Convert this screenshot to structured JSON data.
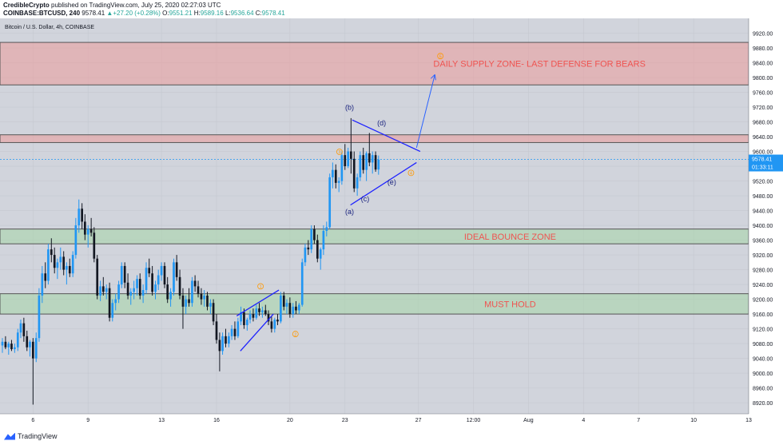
{
  "header": {
    "author": "CredibleCrypto",
    "published": "published on TradingView.com, July 25, 2020 02:27:03 UTC",
    "symbol": "COINBASE:BTCUSD, 240",
    "last": "9578.41",
    "change": "+27.20 (+0.28%)",
    "open_label": "O:",
    "open": "9551.21",
    "high_label": "H:",
    "high": "9589.16",
    "low_label": "L:",
    "low": "9536.64",
    "close_label": "C:",
    "close": "9578.41"
  },
  "pane_title": "Bitcoin / U.S. Dollar, 4h, COINBASE",
  "footer": {
    "brand": "TradingView"
  },
  "colors": {
    "background": "#d1d4dc",
    "up": "#2196f3",
    "down": "#131722",
    "supply_fill": "#ec9b9b",
    "zone_fill": "#a5d6a7",
    "label_red": "#ef5350",
    "drawing_blue": "#1e22ff",
    "wave_orange": "#ff9800",
    "price_line": "#2196f3"
  },
  "chart_data": {
    "type": "candlestick",
    "title": "Bitcoin / U.S. Dollar, 4h, COINBASE",
    "ylim": [
      8890,
      9960
    ],
    "x_range_days": [
      4.2,
      45
    ],
    "y_ticks": [
      9920,
      9880,
      9840,
      9800,
      9760,
      9720,
      9680,
      9640,
      9600,
      9560,
      9520,
      9480,
      9440,
      9400,
      9360,
      9320,
      9280,
      9240,
      9200,
      9160,
      9120,
      9080,
      9040,
      9000,
      8960,
      8920
    ],
    "x_ticks": [
      {
        "day": 6,
        "label": "6"
      },
      {
        "day": 9,
        "label": "9"
      },
      {
        "day": 13,
        "label": "13"
      },
      {
        "day": 16,
        "label": "16"
      },
      {
        "day": 20,
        "label": "20"
      },
      {
        "day": 23,
        "label": "23"
      },
      {
        "day": 27,
        "label": "27"
      },
      {
        "day": 30,
        "label": "12:00"
      },
      {
        "day": 33,
        "label": "Aug"
      },
      {
        "day": 36,
        "label": "4"
      },
      {
        "day": 39,
        "label": "7"
      },
      {
        "day": 42,
        "label": "10"
      },
      {
        "day": 45,
        "label": "13"
      }
    ],
    "last_price": {
      "value": 9578.41,
      "label": "9578.41",
      "countdown": "01:33:11"
    },
    "zones": [
      {
        "name": "DAILY SUPPLY ZONE- LAST DEFENSE FOR BEARS",
        "y_low": 9780,
        "y_high": 9895,
        "kind": "supply"
      },
      {
        "name": "",
        "y_low": 9624,
        "y_high": 9645,
        "kind": "supply"
      },
      {
        "name": "IDEAL BOUNCE ZONE",
        "y_low": 9350,
        "y_high": 9390,
        "kind": "demand"
      },
      {
        "name": "MUST HOLD",
        "y_low": 9160,
        "y_high": 9215,
        "kind": "demand"
      }
    ],
    "wave_labels": [
      {
        "text": "(a)",
        "day": 23.25,
        "y": 9430,
        "color": "blue"
      },
      {
        "text": "(b)",
        "day": 23.25,
        "y": 9712,
        "color": "blue"
      },
      {
        "text": "(c)",
        "day": 24.1,
        "y": 9465,
        "color": "blue"
      },
      {
        "text": "(d)",
        "day": 25.0,
        "y": 9670,
        "color": "blue"
      },
      {
        "text": "(e)",
        "day": 25.55,
        "y": 9510,
        "color": "blue"
      },
      {
        "text": "1",
        "day": 18.4,
        "y": 9235,
        "color": "orange"
      },
      {
        "text": "2",
        "day": 20.3,
        "y": 9106,
        "color": "orange"
      },
      {
        "text": "3",
        "day": 22.7,
        "y": 9599,
        "color": "orange"
      },
      {
        "text": "4",
        "day": 26.6,
        "y": 9542,
        "color": "orange"
      },
      {
        "text": "5",
        "day": 28.2,
        "y": 9858,
        "color": "orange"
      }
    ],
    "trendlines": [
      {
        "x1": 23.4,
        "y1": 9685,
        "x2": 27.1,
        "y2": 9600
      },
      {
        "x1": 23.3,
        "y1": 9455,
        "x2": 26.9,
        "y2": 9570
      },
      {
        "x1": 17.1,
        "y1": 9155,
        "x2": 19.4,
        "y2": 9225
      },
      {
        "x1": 17.3,
        "y1": 9060,
        "x2": 19.1,
        "y2": 9160
      }
    ],
    "projection": {
      "x1": 26.9,
      "y1": 9610,
      "x2": 27.9,
      "y2": 9808
    },
    "candles_ohlc": [
      {
        "d": 4.33,
        "o": 9075,
        "h": 9095,
        "l": 9055,
        "c": 9085
      },
      {
        "d": 4.5,
        "o": 9085,
        "h": 9100,
        "l": 9065,
        "c": 9070
      },
      {
        "d": 4.67,
        "o": 9070,
        "h": 9085,
        "l": 9050,
        "c": 9080
      },
      {
        "d": 4.83,
        "o": 9080,
        "h": 9090,
        "l": 9060,
        "c": 9065
      },
      {
        "d": 5.0,
        "o": 9065,
        "h": 9080,
        "l": 9055,
        "c": 9070
      },
      {
        "d": 5.17,
        "o": 9070,
        "h": 9120,
        "l": 9060,
        "c": 9110
      },
      {
        "d": 5.33,
        "o": 9110,
        "h": 9145,
        "l": 9095,
        "c": 9135
      },
      {
        "d": 5.5,
        "o": 9135,
        "h": 9150,
        "l": 9085,
        "c": 9100
      },
      {
        "d": 5.67,
        "o": 9100,
        "h": 9115,
        "l": 9060,
        "c": 9070
      },
      {
        "d": 5.83,
        "o": 9070,
        "h": 9090,
        "l": 9045,
        "c": 9085
      },
      {
        "d": 6.0,
        "o": 9085,
        "h": 9095,
        "l": 8915,
        "c": 9040
      },
      {
        "d": 6.17,
        "o": 9040,
        "h": 9110,
        "l": 9030,
        "c": 9095
      },
      {
        "d": 6.33,
        "o": 9095,
        "h": 9230,
        "l": 9085,
        "c": 9210
      },
      {
        "d": 6.5,
        "o": 9210,
        "h": 9290,
        "l": 9190,
        "c": 9270
      },
      {
        "d": 6.67,
        "o": 9270,
        "h": 9300,
        "l": 9230,
        "c": 9250
      },
      {
        "d": 6.83,
        "o": 9250,
        "h": 9350,
        "l": 9240,
        "c": 9335
      },
      {
        "d": 7.0,
        "o": 9335,
        "h": 9365,
        "l": 9300,
        "c": 9320
      },
      {
        "d": 7.17,
        "o": 9320,
        "h": 9340,
        "l": 9270,
        "c": 9285
      },
      {
        "d": 7.33,
        "o": 9285,
        "h": 9310,
        "l": 9255,
        "c": 9300
      },
      {
        "d": 7.5,
        "o": 9300,
        "h": 9340,
        "l": 9280,
        "c": 9315
      },
      {
        "d": 7.67,
        "o": 9315,
        "h": 9330,
        "l": 9265,
        "c": 9280
      },
      {
        "d": 7.83,
        "o": 9280,
        "h": 9300,
        "l": 9240,
        "c": 9290
      },
      {
        "d": 8.0,
        "o": 9290,
        "h": 9310,
        "l": 9260,
        "c": 9270
      },
      {
        "d": 8.17,
        "o": 9270,
        "h": 9330,
        "l": 9260,
        "c": 9320
      },
      {
        "d": 8.33,
        "o": 9320,
        "h": 9420,
        "l": 9310,
        "c": 9400
      },
      {
        "d": 8.5,
        "o": 9400,
        "h": 9470,
        "l": 9380,
        "c": 9445
      },
      {
        "d": 8.67,
        "o": 9445,
        "h": 9460,
        "l": 9390,
        "c": 9410
      },
      {
        "d": 8.83,
        "o": 9410,
        "h": 9430,
        "l": 9360,
        "c": 9375
      },
      {
        "d": 9.0,
        "o": 9375,
        "h": 9400,
        "l": 9340,
        "c": 9390
      },
      {
        "d": 9.17,
        "o": 9390,
        "h": 9420,
        "l": 9370,
        "c": 9380
      },
      {
        "d": 9.33,
        "o": 9380,
        "h": 9395,
        "l": 9300,
        "c": 9310
      },
      {
        "d": 9.5,
        "o": 9310,
        "h": 9320,
        "l": 9200,
        "c": 9210
      },
      {
        "d": 9.67,
        "o": 9210,
        "h": 9250,
        "l": 9195,
        "c": 9235
      },
      {
        "d": 9.83,
        "o": 9235,
        "h": 9260,
        "l": 9210,
        "c": 9220
      },
      {
        "d": 10.0,
        "o": 9220,
        "h": 9240,
        "l": 9200,
        "c": 9230
      },
      {
        "d": 10.17,
        "o": 9230,
        "h": 9245,
        "l": 9140,
        "c": 9150
      },
      {
        "d": 10.33,
        "o": 9150,
        "h": 9200,
        "l": 9140,
        "c": 9190
      },
      {
        "d": 10.5,
        "o": 9190,
        "h": 9215,
        "l": 9170,
        "c": 9200
      },
      {
        "d": 10.67,
        "o": 9200,
        "h": 9250,
        "l": 9190,
        "c": 9240
      },
      {
        "d": 10.83,
        "o": 9240,
        "h": 9300,
        "l": 9230,
        "c": 9290
      },
      {
        "d": 11.0,
        "o": 9290,
        "h": 9300,
        "l": 9230,
        "c": 9245
      },
      {
        "d": 11.17,
        "o": 9245,
        "h": 9270,
        "l": 9200,
        "c": 9210
      },
      {
        "d": 11.33,
        "o": 9210,
        "h": 9230,
        "l": 9185,
        "c": 9220
      },
      {
        "d": 11.5,
        "o": 9220,
        "h": 9250,
        "l": 9200,
        "c": 9230
      },
      {
        "d": 11.67,
        "o": 9230,
        "h": 9265,
        "l": 9210,
        "c": 9255
      },
      {
        "d": 11.83,
        "o": 9255,
        "h": 9270,
        "l": 9200,
        "c": 9210
      },
      {
        "d": 12.0,
        "o": 9210,
        "h": 9240,
        "l": 9190,
        "c": 9225
      },
      {
        "d": 12.17,
        "o": 9225,
        "h": 9300,
        "l": 9215,
        "c": 9285
      },
      {
        "d": 12.33,
        "o": 9285,
        "h": 9310,
        "l": 9260,
        "c": 9270
      },
      {
        "d": 12.5,
        "o": 9270,
        "h": 9290,
        "l": 9210,
        "c": 9220
      },
      {
        "d": 12.67,
        "o": 9220,
        "h": 9250,
        "l": 9200,
        "c": 9240
      },
      {
        "d": 12.83,
        "o": 9240,
        "h": 9280,
        "l": 9225,
        "c": 9265
      },
      {
        "d": 13.0,
        "o": 9265,
        "h": 9300,
        "l": 9250,
        "c": 9290
      },
      {
        "d": 13.17,
        "o": 9290,
        "h": 9300,
        "l": 9230,
        "c": 9240
      },
      {
        "d": 13.33,
        "o": 9240,
        "h": 9260,
        "l": 9190,
        "c": 9200
      },
      {
        "d": 13.5,
        "o": 9200,
        "h": 9230,
        "l": 9180,
        "c": 9220
      },
      {
        "d": 13.67,
        "o": 9220,
        "h": 9310,
        "l": 9210,
        "c": 9300
      },
      {
        "d": 13.83,
        "o": 9300,
        "h": 9320,
        "l": 9250,
        "c": 9260
      },
      {
        "d": 14.0,
        "o": 9260,
        "h": 9280,
        "l": 9200,
        "c": 9210
      },
      {
        "d": 14.17,
        "o": 9210,
        "h": 9230,
        "l": 9120,
        "c": 9180
      },
      {
        "d": 14.33,
        "o": 9180,
        "h": 9210,
        "l": 9160,
        "c": 9200
      },
      {
        "d": 14.5,
        "o": 9200,
        "h": 9230,
        "l": 9180,
        "c": 9190
      },
      {
        "d": 14.67,
        "o": 9190,
        "h": 9260,
        "l": 9180,
        "c": 9250
      },
      {
        "d": 14.83,
        "o": 9250,
        "h": 9265,
        "l": 9220,
        "c": 9235
      },
      {
        "d": 15.0,
        "o": 9235,
        "h": 9250,
        "l": 9205,
        "c": 9215
      },
      {
        "d": 15.17,
        "o": 9215,
        "h": 9230,
        "l": 9185,
        "c": 9200
      },
      {
        "d": 15.33,
        "o": 9200,
        "h": 9225,
        "l": 9180,
        "c": 9210
      },
      {
        "d": 15.5,
        "o": 9210,
        "h": 9220,
        "l": 9170,
        "c": 9180
      },
      {
        "d": 15.67,
        "o": 9180,
        "h": 9200,
        "l": 9160,
        "c": 9190
      },
      {
        "d": 15.83,
        "o": 9190,
        "h": 9200,
        "l": 9130,
        "c": 9140
      },
      {
        "d": 16.0,
        "o": 9140,
        "h": 9160,
        "l": 9080,
        "c": 9090
      },
      {
        "d": 16.17,
        "o": 9090,
        "h": 9110,
        "l": 9005,
        "c": 9060
      },
      {
        "d": 16.33,
        "o": 9060,
        "h": 9110,
        "l": 9050,
        "c": 9100
      },
      {
        "d": 16.5,
        "o": 9100,
        "h": 9120,
        "l": 9070,
        "c": 9080
      },
      {
        "d": 16.67,
        "o": 9080,
        "h": 9110,
        "l": 9070,
        "c": 9100
      },
      {
        "d": 16.83,
        "o": 9100,
        "h": 9130,
        "l": 9090,
        "c": 9120
      },
      {
        "d": 17.0,
        "o": 9120,
        "h": 9140,
        "l": 9090,
        "c": 9100
      },
      {
        "d": 17.17,
        "o": 9100,
        "h": 9150,
        "l": 9095,
        "c": 9140
      },
      {
        "d": 17.33,
        "o": 9140,
        "h": 9180,
        "l": 9130,
        "c": 9165
      },
      {
        "d": 17.5,
        "o": 9165,
        "h": 9175,
        "l": 9120,
        "c": 9130
      },
      {
        "d": 17.67,
        "o": 9130,
        "h": 9150,
        "l": 9115,
        "c": 9145
      },
      {
        "d": 17.83,
        "o": 9145,
        "h": 9170,
        "l": 9135,
        "c": 9160
      },
      {
        "d": 18.0,
        "o": 9160,
        "h": 9175,
        "l": 9140,
        "c": 9150
      },
      {
        "d": 18.17,
        "o": 9150,
        "h": 9185,
        "l": 9145,
        "c": 9175
      },
      {
        "d": 18.33,
        "o": 9175,
        "h": 9190,
        "l": 9155,
        "c": 9165
      },
      {
        "d": 18.5,
        "o": 9165,
        "h": 9180,
        "l": 9150,
        "c": 9170
      },
      {
        "d": 18.67,
        "o": 9170,
        "h": 9185,
        "l": 9155,
        "c": 9160
      },
      {
        "d": 18.83,
        "o": 9160,
        "h": 9170,
        "l": 9130,
        "c": 9140
      },
      {
        "d": 19.0,
        "o": 9140,
        "h": 9155,
        "l": 9110,
        "c": 9120
      },
      {
        "d": 19.17,
        "o": 9120,
        "h": 9150,
        "l": 9110,
        "c": 9145
      },
      {
        "d": 19.33,
        "o": 9145,
        "h": 9160,
        "l": 9130,
        "c": 9140
      },
      {
        "d": 19.5,
        "o": 9140,
        "h": 9220,
        "l": 9135,
        "c": 9210
      },
      {
        "d": 19.67,
        "o": 9210,
        "h": 9220,
        "l": 9170,
        "c": 9180
      },
      {
        "d": 19.83,
        "o": 9180,
        "h": 9200,
        "l": 9160,
        "c": 9190
      },
      {
        "d": 20.0,
        "o": 9190,
        "h": 9205,
        "l": 9150,
        "c": 9160
      },
      {
        "d": 20.17,
        "o": 9160,
        "h": 9190,
        "l": 9150,
        "c": 9180
      },
      {
        "d": 20.33,
        "o": 9180,
        "h": 9195,
        "l": 9160,
        "c": 9170
      },
      {
        "d": 20.5,
        "o": 9170,
        "h": 9190,
        "l": 9160,
        "c": 9185
      },
      {
        "d": 20.67,
        "o": 9185,
        "h": 9310,
        "l": 9180,
        "c": 9300
      },
      {
        "d": 20.83,
        "o": 9300,
        "h": 9350,
        "l": 9290,
        "c": 9340
      },
      {
        "d": 21.0,
        "o": 9340,
        "h": 9360,
        "l": 9320,
        "c": 9335
      },
      {
        "d": 21.17,
        "o": 9335,
        "h": 9400,
        "l": 9325,
        "c": 9390
      },
      {
        "d": 21.33,
        "o": 9390,
        "h": 9400,
        "l": 9350,
        "c": 9360
      },
      {
        "d": 21.5,
        "o": 9360,
        "h": 9375,
        "l": 9300,
        "c": 9310
      },
      {
        "d": 21.67,
        "o": 9310,
        "h": 9340,
        "l": 9280,
        "c": 9335
      },
      {
        "d": 21.83,
        "o": 9335,
        "h": 9400,
        "l": 9320,
        "c": 9385
      },
      {
        "d": 22.0,
        "o": 9385,
        "h": 9410,
        "l": 9370,
        "c": 9395
      },
      {
        "d": 22.17,
        "o": 9395,
        "h": 9540,
        "l": 9390,
        "c": 9530
      },
      {
        "d": 22.33,
        "o": 9530,
        "h": 9570,
        "l": 9500,
        "c": 9550
      },
      {
        "d": 22.5,
        "o": 9550,
        "h": 9565,
        "l": 9500,
        "c": 9515
      },
      {
        "d": 22.67,
        "o": 9515,
        "h": 9530,
        "l": 9490,
        "c": 9520
      },
      {
        "d": 22.83,
        "o": 9520,
        "h": 9600,
        "l": 9510,
        "c": 9590
      },
      {
        "d": 23.0,
        "o": 9590,
        "h": 9620,
        "l": 9550,
        "c": 9560
      },
      {
        "d": 23.17,
        "o": 9560,
        "h": 9610,
        "l": 9555,
        "c": 9600
      },
      {
        "d": 23.33,
        "o": 9600,
        "h": 9690,
        "l": 9540,
        "c": 9580
      },
      {
        "d": 23.5,
        "o": 9580,
        "h": 9600,
        "l": 9490,
        "c": 9500
      },
      {
        "d": 23.67,
        "o": 9500,
        "h": 9540,
        "l": 9480,
        "c": 9530
      },
      {
        "d": 23.83,
        "o": 9530,
        "h": 9600,
        "l": 9520,
        "c": 9590
      },
      {
        "d": 24.0,
        "o": 9590,
        "h": 9610,
        "l": 9540,
        "c": 9550
      },
      {
        "d": 24.17,
        "o": 9550,
        "h": 9600,
        "l": 9520,
        "c": 9595
      },
      {
        "d": 24.33,
        "o": 9595,
        "h": 9650,
        "l": 9560,
        "c": 9570
      },
      {
        "d": 24.5,
        "o": 9570,
        "h": 9600,
        "l": 9540,
        "c": 9590
      },
      {
        "d": 24.67,
        "o": 9590,
        "h": 9600,
        "l": 9545,
        "c": 9551
      },
      {
        "d": 24.83,
        "o": 9551,
        "h": 9589,
        "l": 9537,
        "c": 9578
      }
    ]
  }
}
